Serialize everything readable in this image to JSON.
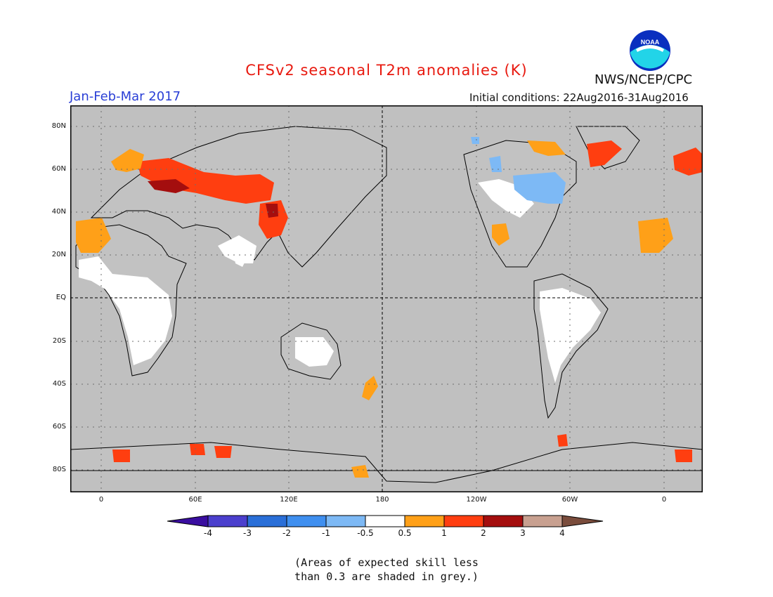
{
  "header": {
    "title": "CFSv2 seasonal T2m anomalies (K)",
    "period": "Jan-Feb-Mar 2017",
    "initial_conditions": "Initial conditions: 22Aug2016-31Aug2016",
    "organization": "NWS/NCEP/CPC",
    "logo_text": "NOAA"
  },
  "map": {
    "lat_labels": [
      "80N",
      "60N",
      "40N",
      "20N",
      "EQ",
      "20S",
      "40S",
      "60S",
      "80S"
    ],
    "lon_labels": [
      "0",
      "60E",
      "120E",
      "180",
      "120W",
      "60W",
      "0"
    ]
  },
  "legend": {
    "labels": [
      "-4",
      "-3",
      "-2",
      "-1",
      "-0.5",
      "0.5",
      "1",
      "2",
      "3",
      "4"
    ],
    "colors": [
      "#3a0ea0",
      "#4b3fcd",
      "#2a6fd8",
      "#3f8fef",
      "#7db9f5",
      "#ffffff",
      "#ffa018",
      "#ff3e10",
      "#a40e0e",
      "#c8a090",
      "#7a4c3c"
    ]
  },
  "note": {
    "line1": "(Areas of expected skill less",
    "line2": "than 0.3 are shaded in grey.)"
  },
  "colors": {
    "ocean_grey": "#c0c0c0",
    "title_red": "#e8190f",
    "period_blue": "#2a3fd6"
  }
}
